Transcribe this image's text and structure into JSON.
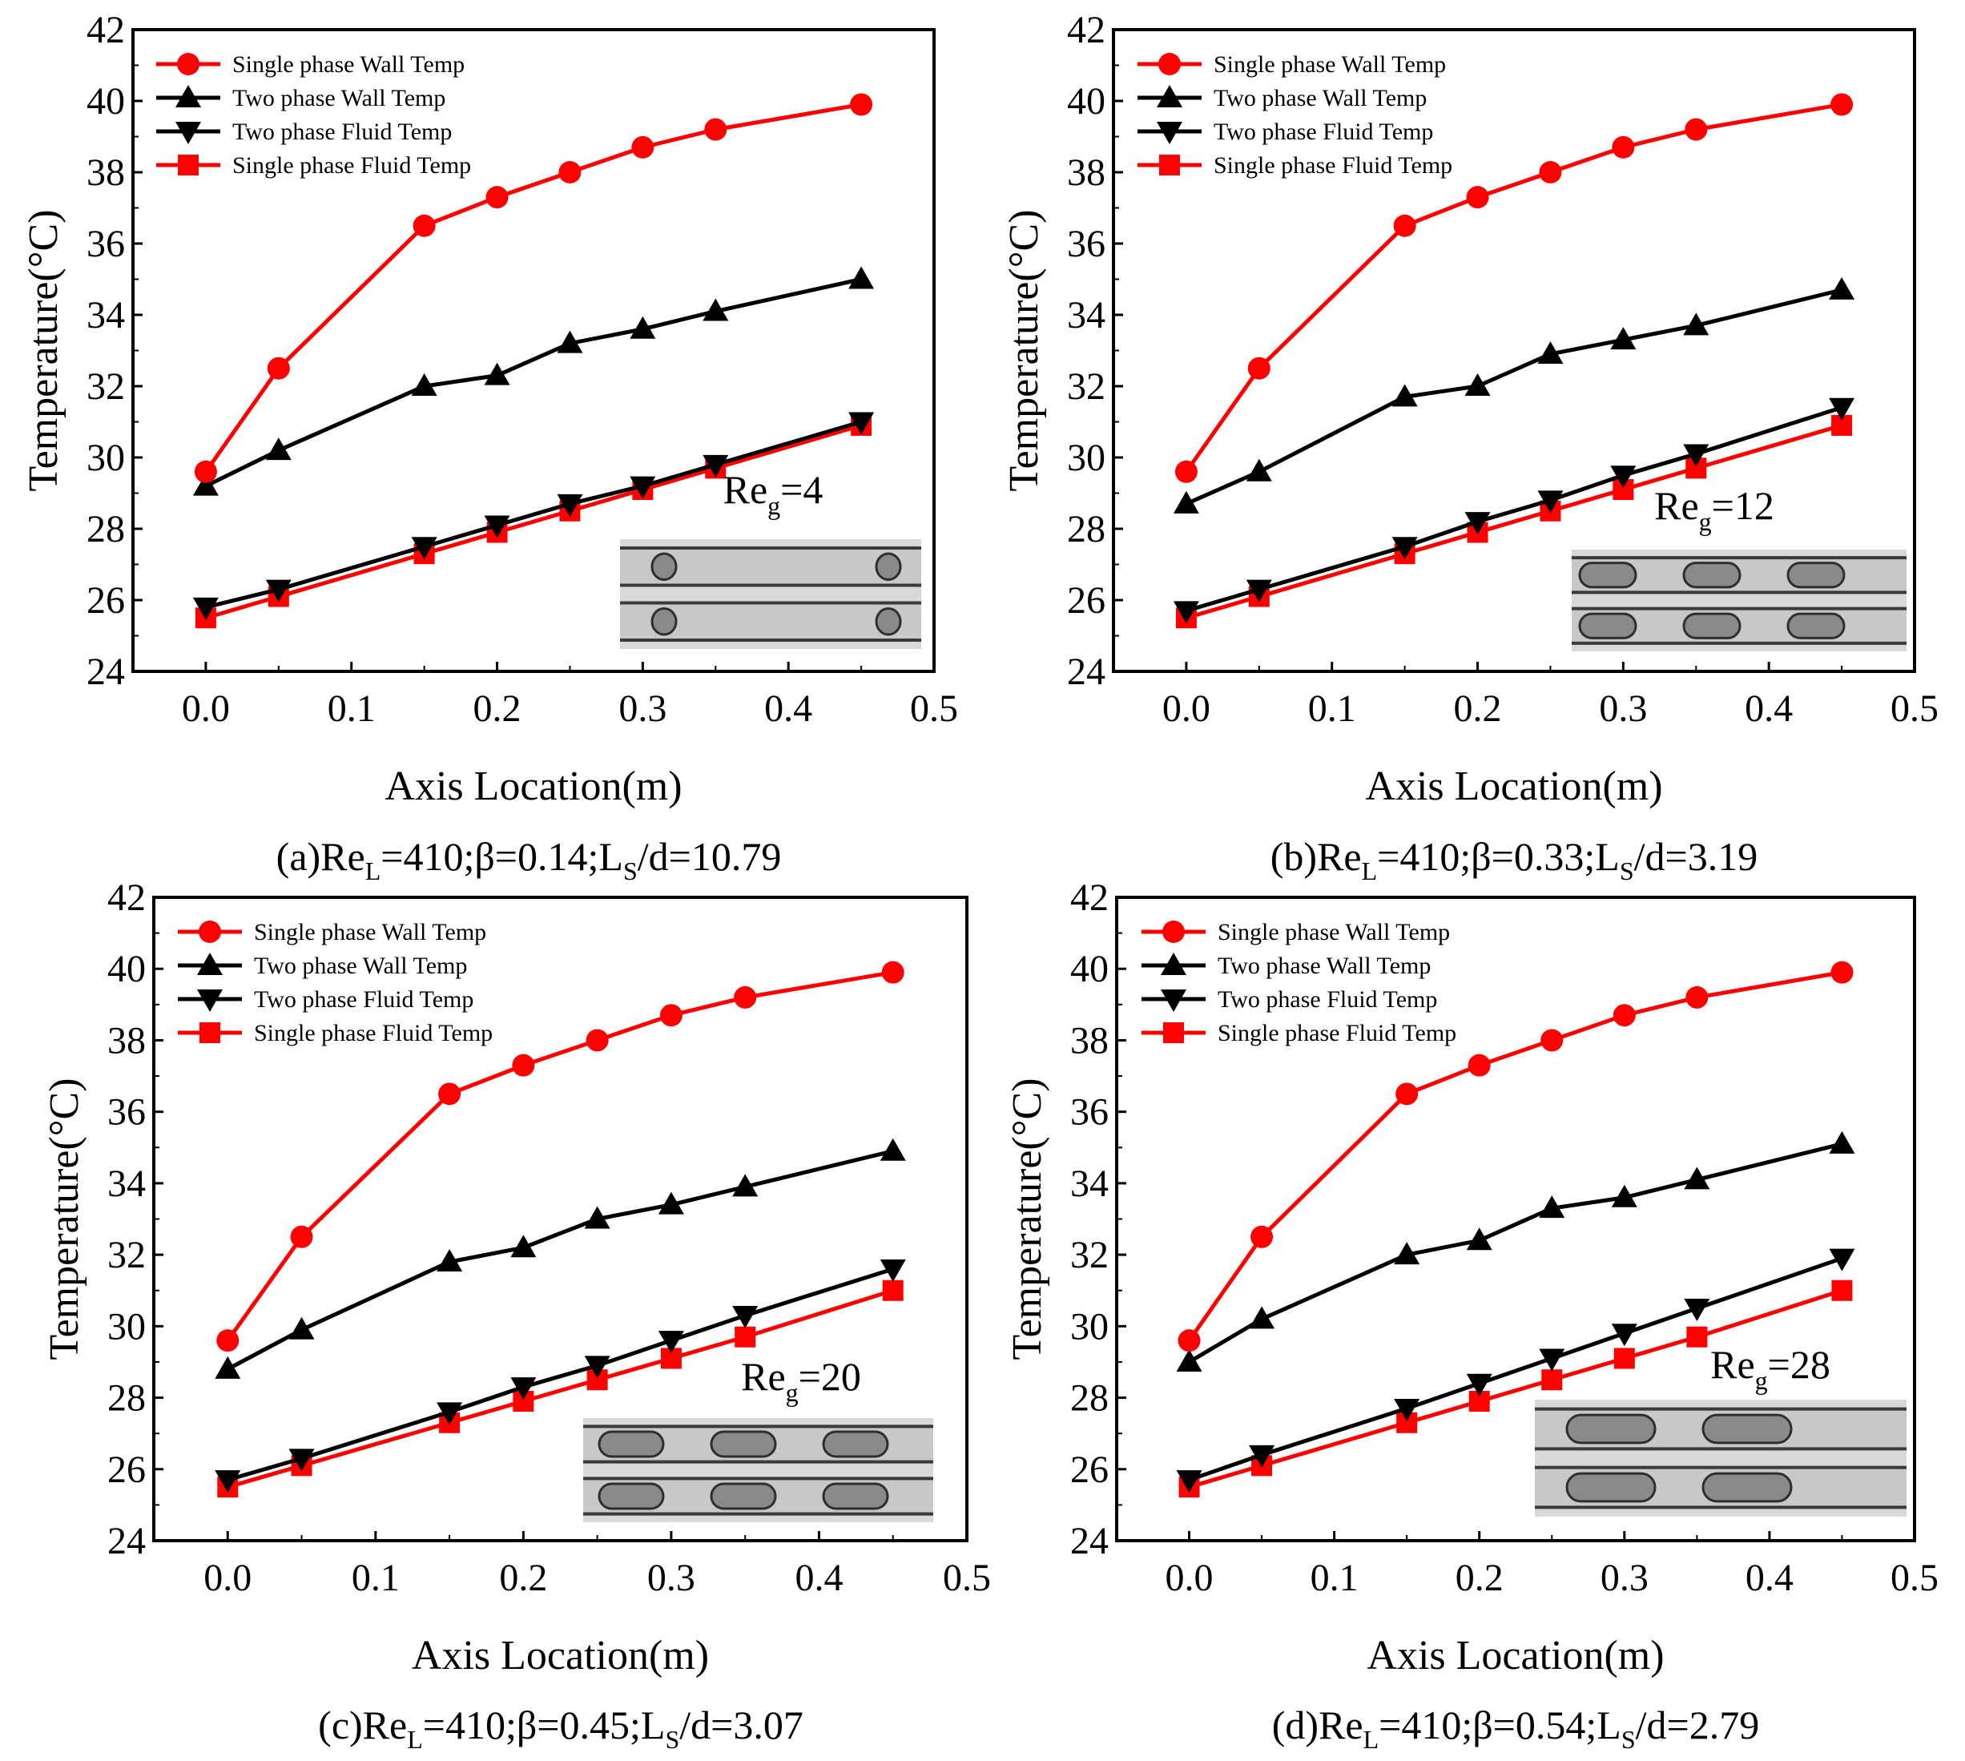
{
  "chart_data": [
    {
      "type": "line",
      "panel": "a",
      "caption": {
        "prefix": "(a)Re",
        "sub1": "L",
        "mid": "=410;β=0.14;L",
        "sub2": "S",
        "suffix": "/d=10.79"
      },
      "annotation": {
        "base": "Re",
        "sub": "g",
        "value": "=4"
      },
      "xlabel": "Axis Location(m)",
      "ylabel": "Temperature(°C)",
      "xlim": [
        -0.05,
        0.5
      ],
      "ylim": [
        24,
        42
      ],
      "xticks": [
        "0.0",
        "0.1",
        "0.2",
        "0.3",
        "0.4",
        "0.5"
      ],
      "yticks": [
        "24",
        "26",
        "28",
        "30",
        "32",
        "34",
        "36",
        "38",
        "40",
        "42"
      ],
      "x": [
        0.0,
        0.05,
        0.15,
        0.2,
        0.25,
        0.3,
        0.35,
        0.45
      ],
      "series": [
        {
          "name": "Single phase Wall Temp",
          "values": [
            29.6,
            32.5,
            36.5,
            37.3,
            38.0,
            38.7,
            39.2,
            39.9
          ]
        },
        {
          "name": "Two phase Wall Temp",
          "values": [
            29.2,
            30.2,
            32.0,
            32.3,
            33.2,
            33.6,
            34.1,
            35.0
          ]
        },
        {
          "name": "Two  phase Fluid Temp",
          "values": [
            25.8,
            26.3,
            27.5,
            28.1,
            28.7,
            29.2,
            29.8,
            31.0
          ]
        },
        {
          "name": "Single phase Fluid Temp",
          "values": [
            25.5,
            26.1,
            27.3,
            27.9,
            28.5,
            29.1,
            29.7,
            30.9
          ]
        }
      ]
    },
    {
      "type": "line",
      "panel": "b",
      "caption": {
        "prefix": "(b)Re",
        "sub1": "L",
        "mid": "=410;β=0.33;L",
        "sub2": "S",
        "suffix": "/d=3.19"
      },
      "annotation": {
        "base": "Re",
        "sub": "g",
        "value": "=12"
      },
      "xlabel": "Axis Location(m)",
      "ylabel": "Temperature(°C)",
      "xlim": [
        -0.05,
        0.5
      ],
      "ylim": [
        24,
        42
      ],
      "xticks": [
        "0.0",
        "0.1",
        "0.2",
        "0.3",
        "0.4",
        "0.5"
      ],
      "yticks": [
        "24",
        "26",
        "28",
        "30",
        "32",
        "34",
        "36",
        "38",
        "40",
        "42"
      ],
      "x": [
        0.0,
        0.05,
        0.15,
        0.2,
        0.25,
        0.3,
        0.35,
        0.45
      ],
      "series": [
        {
          "name": "Single phase Wall Temp",
          "values": [
            29.6,
            32.5,
            36.5,
            37.3,
            38.0,
            38.7,
            39.2,
            39.9
          ]
        },
        {
          "name": "Two phase Wall Temp",
          "values": [
            28.7,
            29.6,
            31.7,
            32.0,
            32.9,
            33.3,
            33.7,
            34.7
          ]
        },
        {
          "name": "Two  phase Fluid Temp",
          "values": [
            25.7,
            26.3,
            27.5,
            28.2,
            28.8,
            29.5,
            30.1,
            31.4
          ]
        },
        {
          "name": "Single phase Fluid Temp",
          "values": [
            25.5,
            26.1,
            27.3,
            27.9,
            28.5,
            29.1,
            29.7,
            30.9
          ]
        }
      ]
    },
    {
      "type": "line",
      "panel": "c",
      "caption": {
        "prefix": "(c)Re",
        "sub1": "L",
        "mid": "=410;β=0.45;L",
        "sub2": "S",
        "suffix": "/d=3.07"
      },
      "annotation": {
        "base": "Re",
        "sub": "g",
        "value": "=20"
      },
      "xlabel": "Axis Location(m)",
      "ylabel": "Temperature(°C)",
      "xlim": [
        -0.05,
        0.5
      ],
      "ylim": [
        24,
        42
      ],
      "xticks": [
        "0.0",
        "0.1",
        "0.2",
        "0.3",
        "0.4",
        "0.5"
      ],
      "yticks": [
        "24",
        "26",
        "28",
        "30",
        "32",
        "34",
        "36",
        "38",
        "40",
        "42"
      ],
      "x": [
        0.0,
        0.05,
        0.15,
        0.2,
        0.25,
        0.3,
        0.35,
        0.45
      ],
      "series": [
        {
          "name": "Single phase Wall Temp",
          "values": [
            29.6,
            32.5,
            36.5,
            37.3,
            38.0,
            38.7,
            39.2,
            39.9
          ]
        },
        {
          "name": "Two phase Wall Temp",
          "values": [
            28.8,
            29.9,
            31.8,
            32.2,
            33.0,
            33.4,
            33.9,
            34.9
          ]
        },
        {
          "name": "Two  phase Fluid Temp",
          "values": [
            25.7,
            26.3,
            27.6,
            28.3,
            28.9,
            29.6,
            30.3,
            31.6
          ]
        },
        {
          "name": "Single phase Fluid Temp",
          "values": [
            25.5,
            26.1,
            27.3,
            27.9,
            28.5,
            29.1,
            29.7,
            31.0
          ]
        }
      ]
    },
    {
      "type": "line",
      "panel": "d",
      "caption": {
        "prefix": "(d)Re",
        "sub1": "L",
        "mid": "=410;β=0.54;L",
        "sub2": "S",
        "suffix": "/d=2.79"
      },
      "annotation": {
        "base": "Re",
        "sub": "g",
        "value": "=28"
      },
      "xlabel": "Axis Location(m)",
      "ylabel": "Temperature(°C)",
      "xlim": [
        -0.05,
        0.5
      ],
      "ylim": [
        24,
        42
      ],
      "xticks": [
        "0.0",
        "0.1",
        "0.2",
        "0.3",
        "0.4",
        "0.5"
      ],
      "yticks": [
        "24",
        "26",
        "28",
        "30",
        "32",
        "34",
        "36",
        "38",
        "40",
        "42"
      ],
      "x": [
        0.0,
        0.05,
        0.15,
        0.2,
        0.25,
        0.3,
        0.35,
        0.45
      ],
      "series": [
        {
          "name": "Single phase Wall Temp",
          "values": [
            29.6,
            32.5,
            36.5,
            37.3,
            38.0,
            38.7,
            39.2,
            39.9
          ]
        },
        {
          "name": "Two phase Wall Temp",
          "values": [
            29.0,
            30.2,
            32.0,
            32.4,
            33.3,
            33.6,
            34.1,
            35.1
          ]
        },
        {
          "name": "Two  phase Fluid Temp",
          "values": [
            25.7,
            26.4,
            27.7,
            28.4,
            29.1,
            29.8,
            30.5,
            31.9
          ]
        },
        {
          "name": "Single phase Fluid Temp",
          "values": [
            25.5,
            26.1,
            27.3,
            27.9,
            28.5,
            29.1,
            29.7,
            31.0
          ]
        }
      ]
    }
  ],
  "styles": {
    "red": "#ff0000",
    "black": "#000000",
    "markers": [
      "circle",
      "triangle-up",
      "triangle-down",
      "square"
    ]
  }
}
